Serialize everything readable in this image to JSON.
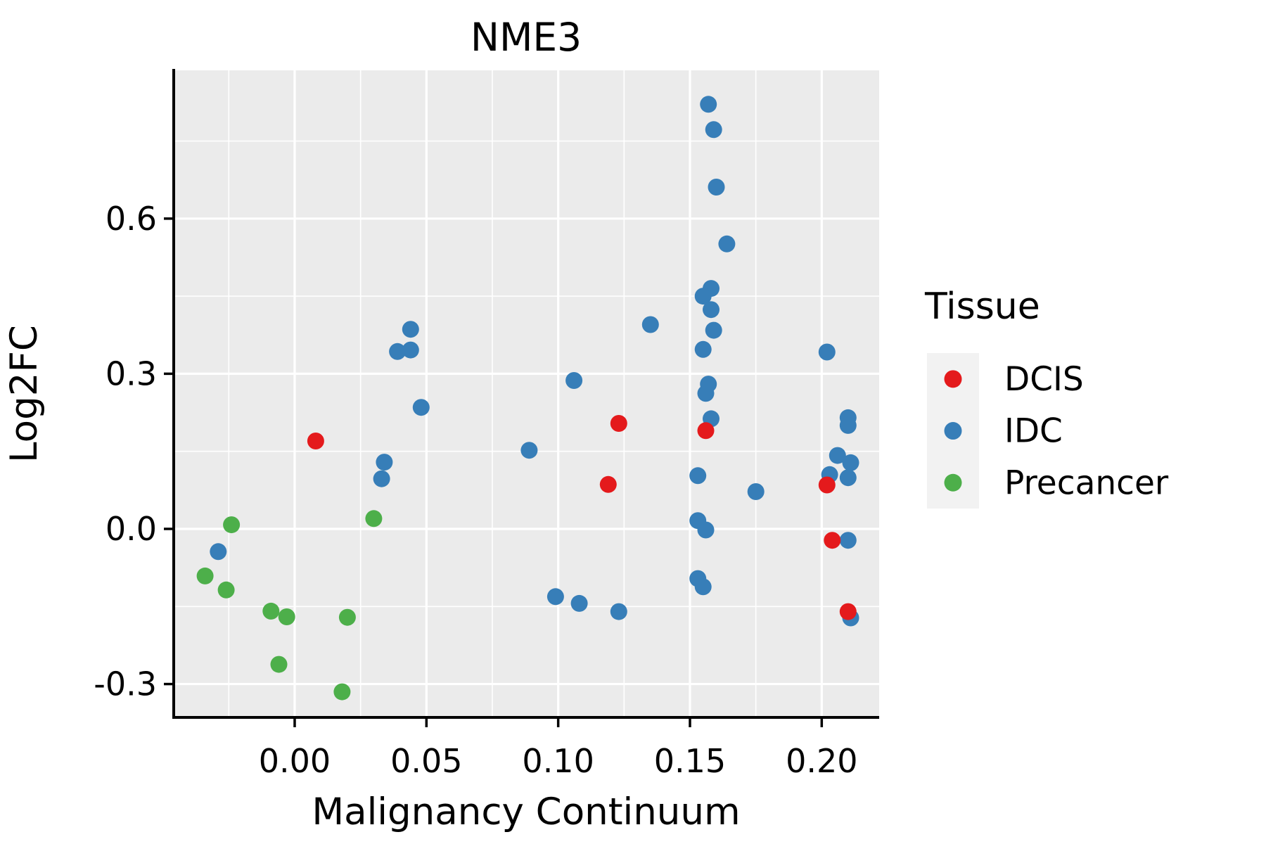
{
  "chart_data": {
    "type": "scatter",
    "title": "NME3",
    "xlabel": "Malignancy Continuum",
    "ylabel": "Log2FC",
    "legend_title": "Tissue",
    "legend_position": "right",
    "grid": true,
    "xlim": [
      -0.0459,
      0.2218
    ],
    "ylim": [
      -0.3645,
      0.8867
    ],
    "xticks": {
      "values": [
        0.0,
        0.05,
        0.1,
        0.15,
        0.2
      ],
      "labels": [
        "0.00",
        "0.05",
        "0.10",
        "0.15",
        "0.20"
      ]
    },
    "yticks": {
      "values": [
        -0.3,
        0.0,
        0.3,
        0.6
      ],
      "labels": [
        "-0.3",
        "0.0",
        "0.3",
        "0.6"
      ]
    },
    "xminor": [
      -0.025,
      0.025,
      0.075,
      0.125,
      0.175
    ],
    "yminor": [
      -0.15,
      0.15,
      0.45,
      0.75
    ],
    "style": {
      "panel_bg": "#EBEBEB",
      "grid_color": "#FFFFFF",
      "legend_key_bg": "#F2F2F2",
      "spine_color": "#000000",
      "dcis_color": "#E41A1C",
      "idc_color": "#377EB8",
      "precancer_color": "#4DAF4A"
    },
    "series": [
      {
        "name": "DCIS",
        "color": "#E41A1C",
        "zorder": 3,
        "points": [
          [
            0.008,
            0.17
          ],
          [
            0.119,
            0.086
          ],
          [
            0.123,
            0.204
          ],
          [
            0.156,
            0.19
          ],
          [
            0.202,
            0.085
          ],
          [
            0.204,
            -0.022
          ],
          [
            0.21,
            -0.16
          ]
        ]
      },
      {
        "name": "IDC",
        "color": "#377EB8",
        "zorder": 1,
        "points": [
          [
            -0.029,
            -0.044
          ],
          [
            0.033,
            0.097
          ],
          [
            0.034,
            0.129
          ],
          [
            0.039,
            0.343
          ],
          [
            0.044,
            0.346
          ],
          [
            0.044,
            0.386
          ],
          [
            0.048,
            0.235
          ],
          [
            0.089,
            0.152
          ],
          [
            0.106,
            0.287
          ],
          [
            0.135,
            0.395
          ],
          [
            0.099,
            -0.131
          ],
          [
            0.108,
            -0.144
          ],
          [
            0.123,
            -0.16
          ],
          [
            0.157,
            0.821
          ],
          [
            0.159,
            0.772
          ],
          [
            0.16,
            0.661
          ],
          [
            0.164,
            0.551
          ],
          [
            0.158,
            0.465
          ],
          [
            0.155,
            0.45
          ],
          [
            0.158,
            0.424
          ],
          [
            0.159,
            0.384
          ],
          [
            0.155,
            0.347
          ],
          [
            0.157,
            0.28
          ],
          [
            0.156,
            0.262
          ],
          [
            0.158,
            0.213
          ],
          [
            0.153,
            0.103
          ],
          [
            0.153,
            0.016
          ],
          [
            0.156,
            -0.002
          ],
          [
            0.153,
            -0.096
          ],
          [
            0.155,
            -0.112
          ],
          [
            0.175,
            0.072
          ],
          [
            0.202,
            0.342
          ],
          [
            0.21,
            0.215
          ],
          [
            0.21,
            0.2
          ],
          [
            0.206,
            0.142
          ],
          [
            0.211,
            0.128
          ],
          [
            0.203,
            0.105
          ],
          [
            0.21,
            0.099
          ],
          [
            0.21,
            -0.022
          ],
          [
            0.211,
            -0.172
          ]
        ]
      },
      {
        "name": "Precancer",
        "color": "#4DAF4A",
        "zorder": 2,
        "points": [
          [
            -0.024,
            0.008
          ],
          [
            0.03,
            0.02
          ],
          [
            -0.034,
            -0.091
          ],
          [
            -0.026,
            -0.118
          ],
          [
            -0.009,
            -0.159
          ],
          [
            -0.003,
            -0.17
          ],
          [
            0.02,
            -0.171
          ],
          [
            -0.006,
            -0.262
          ],
          [
            0.018,
            -0.315
          ]
        ]
      }
    ]
  }
}
